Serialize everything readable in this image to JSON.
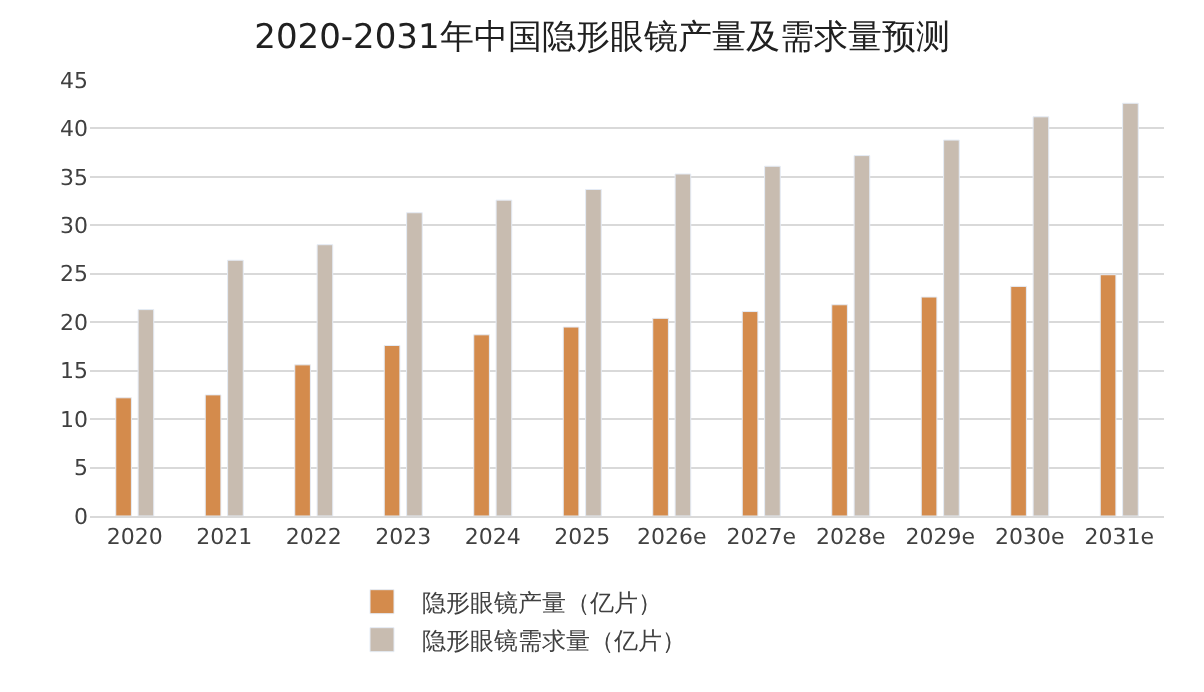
{
  "chart_data": {
    "type": "bar",
    "title": "2020-2031年中国隐形眼镜产量及需求量预测",
    "categories": [
      "2020",
      "2021",
      "2022",
      "2023",
      "2024",
      "2025",
      "2026e",
      "2027e",
      "2028e",
      "2029e",
      "2030e",
      "2031e"
    ],
    "series": [
      {
        "name": "隐形眼镜产量（亿片）",
        "color": "#d48b4c",
        "values": [
          12.2,
          12.5,
          15.6,
          17.6,
          18.7,
          19.5,
          20.4,
          21.1,
          21.8,
          22.6,
          23.7,
          24.9
        ]
      },
      {
        "name": "隐形眼镜需求量（亿片）",
        "color": "#c8bcb0",
        "values": [
          21.3,
          26.4,
          28.0,
          31.3,
          32.6,
          33.7,
          35.3,
          36.1,
          37.2,
          38.8,
          41.2,
          42.6
        ]
      }
    ],
    "ylim": [
      0,
      45
    ],
    "yticks": [
      0,
      5,
      10,
      15,
      20,
      25,
      30,
      35,
      40,
      45
    ],
    "grid": "y",
    "legend": "bottom"
  }
}
